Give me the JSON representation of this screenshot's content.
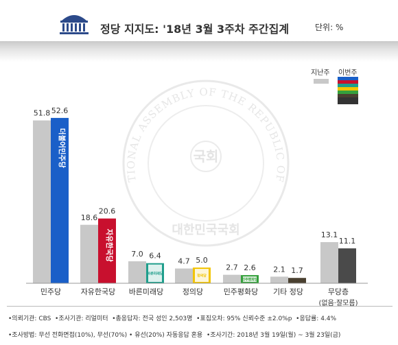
{
  "header": {
    "title": "정당 지지도: '18년 3월 3주차 주간집계",
    "unit": "단위: %"
  },
  "legend": {
    "prev_label": "지난주",
    "curr_label": "이번주"
  },
  "chart_data": {
    "type": "bar",
    "title": "정당 지지도: '18년 3월 3주차 주간집계",
    "unit": "%",
    "categories": [
      "민주당",
      "자유한국당",
      "바른미래당",
      "정의당",
      "민주평화당",
      "기타 정당",
      "무당층"
    ],
    "category_sublabels": [
      "",
      "",
      "",
      "",
      "",
      "",
      "(없음·잘모름)"
    ],
    "series": [
      {
        "name": "지난주",
        "values": [
          51.8,
          18.6,
          7.0,
          4.7,
          2.7,
          2.1,
          13.1
        ]
      },
      {
        "name": "이번주",
        "values": [
          52.6,
          20.6,
          6.4,
          5.0,
          2.6,
          1.7,
          11.1
        ]
      }
    ],
    "value_labels": {
      "지난주": [
        "51.8",
        "18.6",
        "7.0",
        "4.7",
        "2.7",
        "2.1",
        "13.1"
      ],
      "이번주": [
        "52.6",
        "20.6",
        "6.4",
        "5.0",
        "2.6",
        "1.7",
        "11.1"
      ]
    },
    "bar_colors": {
      "지난주": "#c8c8c8",
      "이번주": [
        "#1a5fc8",
        "#c8102e",
        "#1f9e8c",
        "#f2c400",
        "#35a03c",
        "#4a4030",
        "#4a4a4a"
      ]
    },
    "party_logos": [
      "더불어민주당",
      "자유한국당",
      "바른미래당",
      "정의당",
      "민주평화당",
      "",
      ""
    ],
    "ylim": [
      0,
      60
    ],
    "legend_position": "top-right",
    "grid": false
  },
  "footer": {
    "line1": "•의뢰기관: CBS  •조사기관: 리얼미터  •총응답자: 전국 성인 2,503명  •표집오차: 95% 신뢰수준 ±2.0%p  •응답률: 4.4%",
    "line2": "•조사방법: 무선 전화면접(10%), 무선(70%) • 유선(20%) 자동응답 혼용  •조사기간: 2018년 3월 19일(월) ~ 3월 23일(금)"
  },
  "watermark": {
    "ring_text": "THE NATIONAL ASSEMBLY OF THE REPUBLIC OF KOREA",
    "bottom_text": "대한민국국회",
    "center_text": "국회"
  }
}
